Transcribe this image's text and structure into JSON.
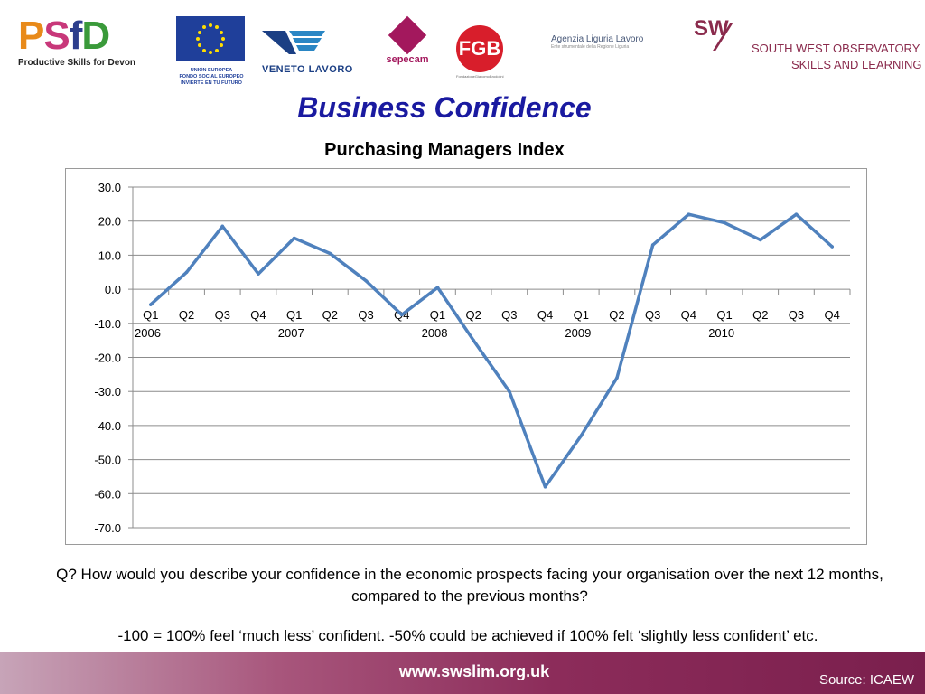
{
  "logos": {
    "psfd": {
      "letters": [
        "P",
        "S",
        "f",
        "D"
      ],
      "tagline": "Productive Skills for Devon"
    },
    "eu": {
      "caption_lines": [
        "UNIÓN EUROPEA",
        "FONDO SOCIAL EUROPEO",
        "INVIERTE EN TU FUTURO"
      ]
    },
    "veneto": {
      "caption": "VENETO LAVORO"
    },
    "sepecam": {
      "caption": "sepecam"
    },
    "fgb": {
      "mark": "FGB",
      "caption": "FondazioneGiacomoBrodolini"
    },
    "liguria": {
      "caption": "Agenzia Liguria Lavoro",
      "caption2": "Ente strumentale della Regione Liguria"
    },
    "swo": {
      "mark": "SW",
      "slash": "⁄",
      "line1": "SOUTH WEST OBSERVATORY",
      "line2": "SKILLS AND LEARNING"
    }
  },
  "slide": {
    "title": "Business Confidence",
    "subtitle": "Purchasing Managers Index",
    "question": "Q?   How would you describe your confidence in the economic prospects facing your organisation over the next 12 months, compared to the previous months?",
    "note": "-100 = 100% feel ‘much less’ confident. -50% could be achieved if 100% felt ‘slightly less confident’ etc."
  },
  "footer": {
    "url": "www.swslim.org.uk",
    "source": "Source: ICAEW"
  },
  "colors": {
    "line": "#4f81bd",
    "grid": "#8c8c8c",
    "title": "#1a1aa0",
    "footer": "#8c2c5a"
  },
  "chart_data": {
    "type": "line",
    "title": "Purchasing Managers Index",
    "xlabel": "",
    "ylabel": "",
    "ylim": [
      -70,
      30
    ],
    "yticks": [
      30,
      20,
      10,
      0,
      -10,
      -20,
      -30,
      -40,
      -50,
      -60,
      -70
    ],
    "ytick_labels": [
      "30.0",
      "20.0",
      "10.0",
      "0.0",
      "-10.0",
      "-20.0",
      "-30.0",
      "-40.0",
      "-50.0",
      "-60.0",
      "-70.0"
    ],
    "grid": true,
    "legend": "none",
    "categories": [
      "Q1",
      "Q2",
      "Q3",
      "Q4",
      "Q1",
      "Q2",
      "Q3",
      "Q4",
      "Q1",
      "Q2",
      "Q3",
      "Q4",
      "Q1",
      "Q2",
      "Q3",
      "Q4",
      "Q1",
      "Q2",
      "Q3",
      "Q4"
    ],
    "years": [
      "2006",
      "2007",
      "2008",
      "2009",
      "2010"
    ],
    "series": [
      {
        "values": [
          -4.5,
          5.0,
          18.5,
          4.5,
          15.0,
          10.5,
          2.5,
          -7.5,
          0.5,
          -15.0,
          -30.0,
          -58.0,
          -43.0,
          -26.0,
          13.0,
          22.0,
          19.5,
          14.5,
          22.0,
          12.5
        ]
      }
    ]
  }
}
